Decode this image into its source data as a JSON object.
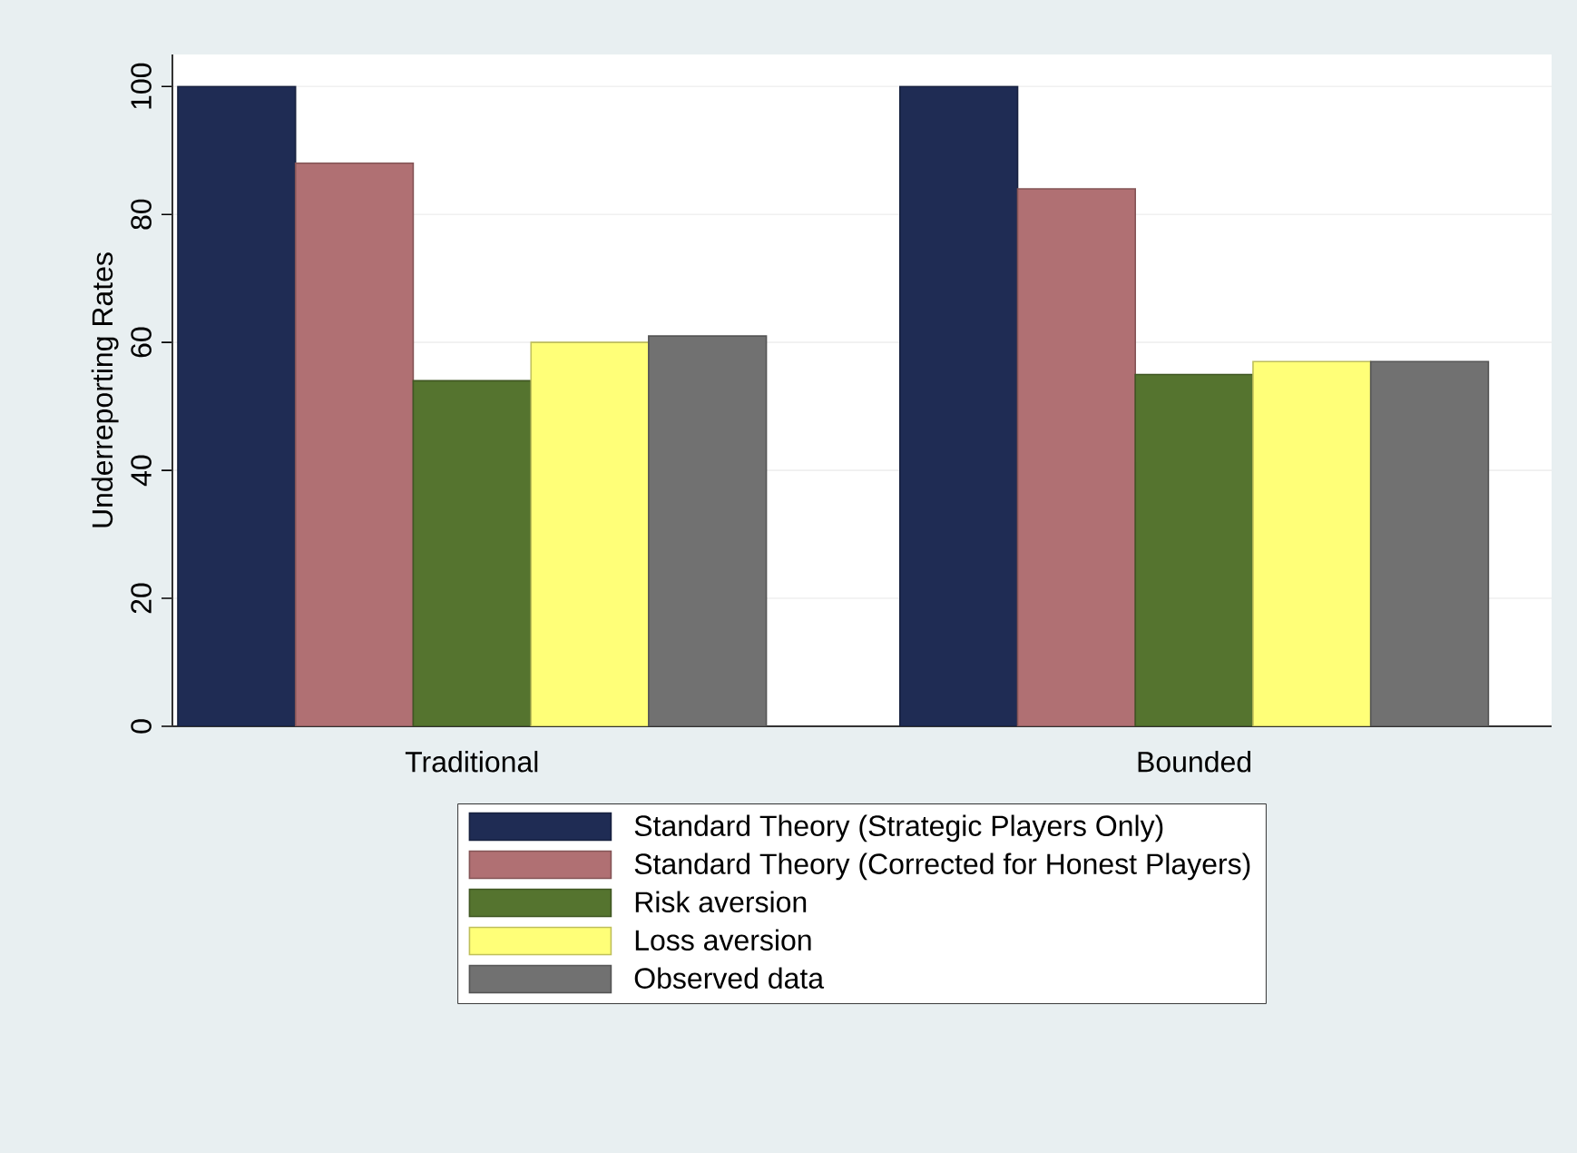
{
  "chart_data": {
    "type": "bar",
    "ylabel": "Underreporting Rates",
    "categories": [
      "Traditional",
      "Bounded"
    ],
    "series": [
      {
        "name": "Standard Theory (Strategic Players Only)",
        "color": "#1f2c54",
        "values": [
          100,
          100
        ]
      },
      {
        "name": "Standard Theory (Corrected for Honest Players)",
        "color": "#b07073",
        "values": [
          88,
          84
        ]
      },
      {
        "name": "Risk aversion",
        "color": "#55742f",
        "values": [
          54,
          55
        ]
      },
      {
        "name": "Loss aversion",
        "color": "#ffff78",
        "values": [
          60,
          57
        ]
      },
      {
        "name": "Observed data",
        "color": "#717171",
        "values": [
          61,
          57
        ]
      }
    ],
    "ylim": [
      0,
      105
    ],
    "yticks": [
      0,
      20,
      40,
      60,
      80,
      100
    ],
    "grid": "y",
    "legend": "bottom"
  }
}
